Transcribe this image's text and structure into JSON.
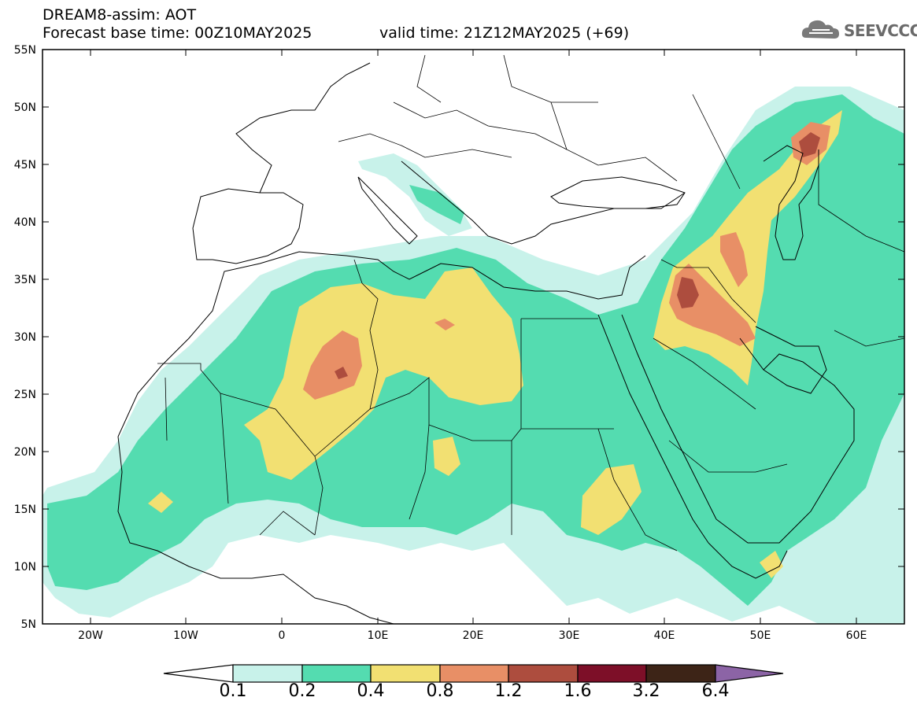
{
  "header": {
    "title_line1": "DREAM8-assim: AOT",
    "title_line2": "Forecast base time: 00Z10MAY2025",
    "valid_time": "valid time: 21Z12MAY2025 (+69)",
    "logo_text": "SEEVCCC"
  },
  "map": {
    "lat_labels": [
      "55N",
      "50N",
      "45N",
      "40N",
      "35N",
      "30N",
      "25N",
      "20N",
      "15N",
      "10N",
      "5N"
    ],
    "lon_labels": [
      "20W",
      "10W",
      "0",
      "10E",
      "20E",
      "30E",
      "40E",
      "50E",
      "60E"
    ],
    "lat_range": [
      5,
      55
    ],
    "lon_range": [
      -25,
      65
    ]
  },
  "colorbar": {
    "levels": [
      "0.1",
      "0.2",
      "0.4",
      "0.8",
      "1.2",
      "1.6",
      "3.2",
      "6.4"
    ],
    "colors": [
      "#ffffff",
      "#c8f2ea",
      "#54dcb0",
      "#f2e072",
      "#e88f66",
      "#ad4d3e",
      "#7d0f28",
      "#3d2417",
      "#8c64a6"
    ]
  }
}
